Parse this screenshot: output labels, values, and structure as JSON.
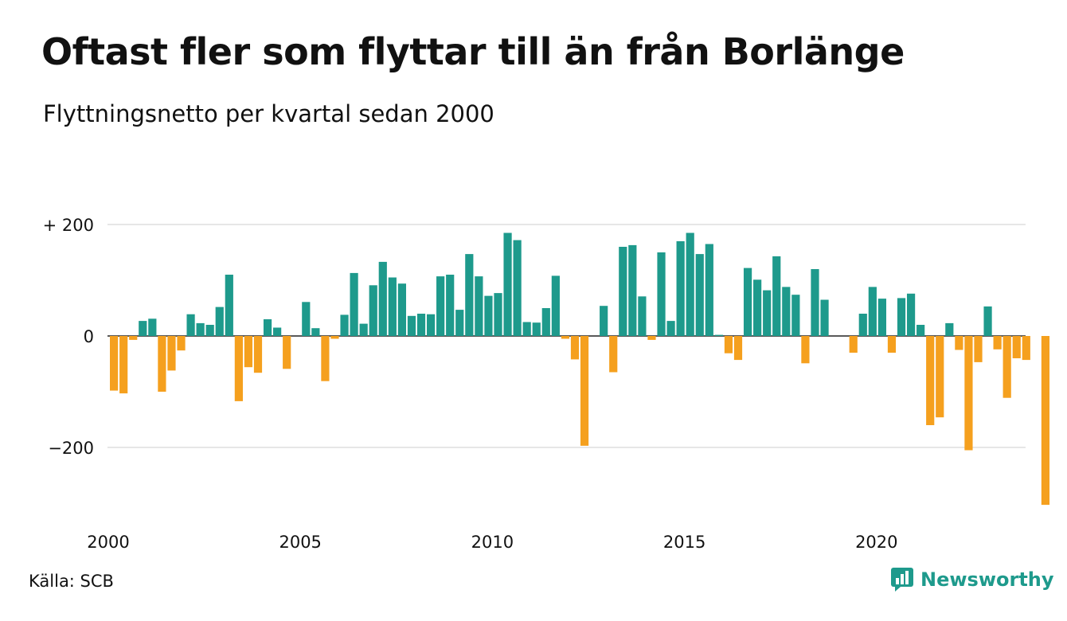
{
  "colors": {
    "positive": "#1e9a8c",
    "negative": "#f5a01e",
    "grid": "#dddddd",
    "text": "#111111"
  },
  "footer": {
    "source": "Källa: SCB",
    "brand": "Newsworthy",
    "brand_icon": "bar-chart-speech-icon"
  },
  "chart_data": {
    "type": "bar",
    "title": "Oftast fler som flyttar till än från Borlänge",
    "subtitle": "Flyttningsnetto per kvartal sedan 2000",
    "xlabel": "",
    "ylabel": "",
    "ylim": [
      -300,
      200
    ],
    "yticks": [
      {
        "value": 200,
        "label": "+ 200"
      },
      {
        "value": 0,
        "label": "0"
      },
      {
        "value": -200,
        "label": "−200"
      }
    ],
    "xticks": [
      {
        "value": 2000,
        "label": "2000"
      },
      {
        "value": 2005,
        "label": "2005"
      },
      {
        "value": 2010,
        "label": "2010"
      },
      {
        "value": 2015,
        "label": "2015"
      },
      {
        "value": 2020,
        "label": "2020"
      }
    ],
    "grid": true,
    "categories": [
      "2000 Q1",
      "2000 Q2",
      "2000 Q3",
      "2000 Q4",
      "2001 Q1",
      "2001 Q2",
      "2001 Q3",
      "2001 Q4",
      "2002 Q1",
      "2002 Q2",
      "2002 Q3",
      "2002 Q4",
      "2003 Q1",
      "2003 Q2",
      "2003 Q3",
      "2003 Q4",
      "2004 Q1",
      "2004 Q2",
      "2004 Q3",
      "2004 Q4",
      "2005 Q1",
      "2005 Q2",
      "2005 Q3",
      "2005 Q4",
      "2006 Q1",
      "2006 Q2",
      "2006 Q3",
      "2006 Q4",
      "2007 Q1",
      "2007 Q2",
      "2007 Q3",
      "2007 Q4",
      "2008 Q1",
      "2008 Q2",
      "2008 Q3",
      "2008 Q4",
      "2009 Q1",
      "2009 Q2",
      "2009 Q3",
      "2009 Q4",
      "2010 Q1",
      "2010 Q2",
      "2010 Q3",
      "2010 Q4",
      "2011 Q1",
      "2011 Q2",
      "2011 Q3",
      "2011 Q4",
      "2012 Q1",
      "2012 Q2",
      "2012 Q3",
      "2012 Q4",
      "2013 Q1",
      "2013 Q2",
      "2013 Q3",
      "2013 Q4",
      "2014 Q1",
      "2014 Q2",
      "2014 Q3",
      "2014 Q4",
      "2015 Q1",
      "2015 Q2",
      "2015 Q3",
      "2015 Q4",
      "2016 Q1",
      "2016 Q2",
      "2016 Q3",
      "2016 Q4",
      "2017 Q1",
      "2017 Q2",
      "2017 Q3",
      "2017 Q4",
      "2018 Q1",
      "2018 Q2",
      "2018 Q3",
      "2018 Q4",
      "2019 Q1",
      "2019 Q2",
      "2019 Q3",
      "2019 Q4",
      "2020 Q1",
      "2020 Q2",
      "2020 Q3",
      "2020 Q4",
      "2021 Q1",
      "2021 Q2",
      "2021 Q3",
      "2021 Q4",
      "2022 Q1",
      "2022 Q2",
      "2022 Q3",
      "2022 Q4",
      "2023 Q1",
      "2023 Q2",
      "2023 Q3",
      "2023 Q4",
      "2024 Q1",
      "2024 Q2",
      "2024 Q3",
      "2024 Q4"
    ],
    "values": [
      -98,
      -103,
      -7,
      27,
      31,
      -100,
      -62,
      -26,
      39,
      23,
      20,
      52,
      110,
      -117,
      -56,
      -66,
      30,
      15,
      -59,
      0,
      61,
      14,
      -81,
      -5,
      38,
      113,
      22,
      91,
      133,
      105,
      94,
      36,
      40,
      39,
      107,
      110,
      47,
      147,
      107,
      72,
      77,
      185,
      172,
      25,
      24,
      50,
      108,
      -5,
      -42,
      -197,
      0,
      54,
      -65,
      160,
      163,
      71,
      -7,
      150,
      27,
      170,
      185,
      147,
      165,
      2,
      -31,
      -43,
      122,
      101,
      82,
      143,
      88,
      74,
      -49,
      120,
      65,
      0,
      0,
      -30,
      40,
      88,
      67,
      -30,
      68,
      76,
      20,
      -160,
      -146,
      23,
      -25,
      -205,
      -47,
      53,
      -24,
      -111,
      -40,
      -43,
      0,
      -303,
      0,
      0
    ]
  }
}
